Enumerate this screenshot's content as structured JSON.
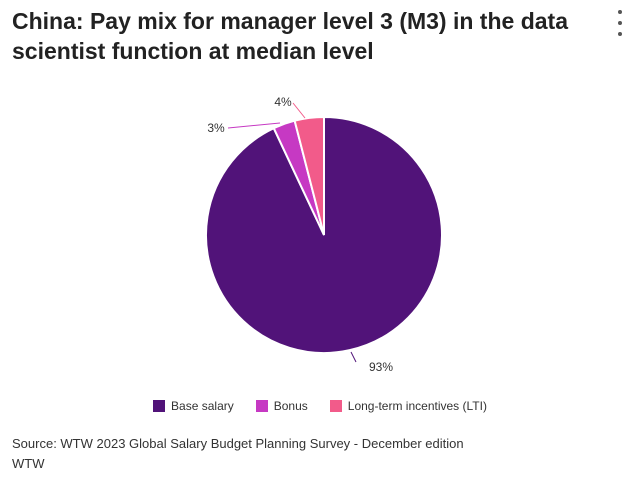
{
  "header": {
    "title": "China: Pay mix for manager level 3 (M3) in the data scientist function at median level",
    "menu_icon": "more-vertical-icon"
  },
  "chart_data": {
    "type": "pie",
    "title": "China: Pay mix for manager level 3 (M3) in the data scientist function at median level",
    "slices": [
      {
        "label": "Base salary",
        "value": 93,
        "display": "93%",
        "color": "#511379"
      },
      {
        "label": "Bonus",
        "value": 3,
        "display": "3%",
        "color": "#c639c3"
      },
      {
        "label": "Long-term incentives (LTI)",
        "value": 4,
        "display": "4%",
        "color": "#f25b8a"
      }
    ],
    "legend_position": "bottom",
    "start_angle": "12 o'clock",
    "direction": "clockwise"
  },
  "footer": {
    "source": "Source: WTW 2023 Global Salary Budget Planning Survey - December edition",
    "credit": "WTW"
  }
}
